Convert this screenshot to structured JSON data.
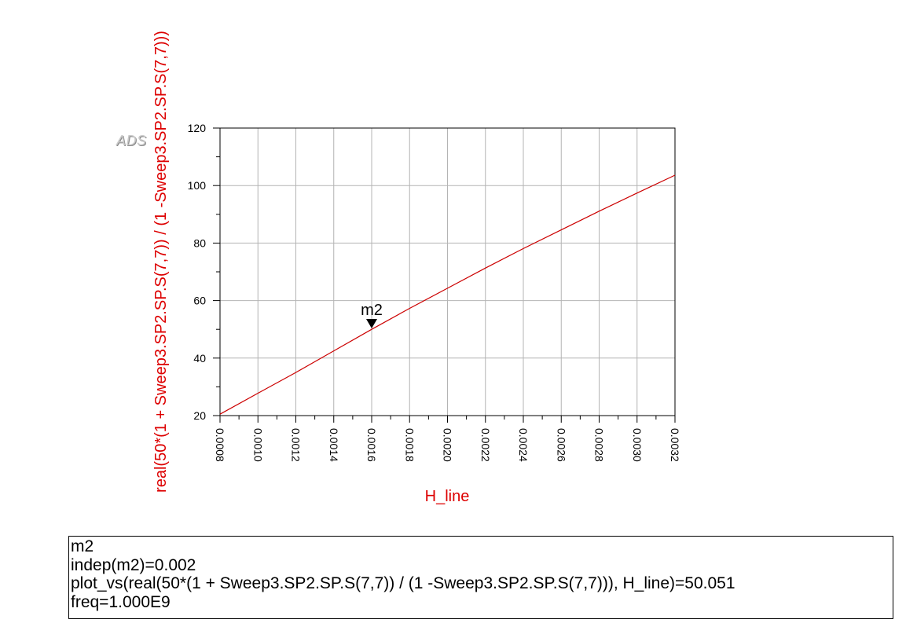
{
  "watermark": "ADS",
  "chart_data": {
    "type": "line",
    "xlabel": "H_line",
    "ylabel": "real(50*(1 + Sweep3.SP2.SP.S(7,7)) / (1 -Sweep3.SP2.SP.S(7,7)))",
    "xlim": [
      0.0008,
      0.0032
    ],
    "ylim": [
      20,
      120
    ],
    "xticks": [
      "0.0008",
      "0.0010",
      "0.0012",
      "0.0014",
      "0.0016",
      "0.0018",
      "0.0020",
      "0.0022",
      "0.0024",
      "0.0026",
      "0.0028",
      "0.0030",
      "0.0032"
    ],
    "yticks": [
      "20",
      "40",
      "60",
      "80",
      "100",
      "120"
    ],
    "grid": true,
    "line_color": "#cc0000",
    "axis_label_color": "#dd0000",
    "series": [
      {
        "x": [
          0.0008,
          0.001,
          0.0012,
          0.0014,
          0.0016,
          0.0018,
          0.002,
          0.0022,
          0.0024,
          0.0026,
          0.0028,
          0.003,
          0.0032
        ],
        "y": [
          20.5,
          27.8,
          35.0,
          42.5,
          50.0,
          57.3,
          64.3,
          71.3,
          78.1,
          84.6,
          91.1,
          97.4,
          103.6
        ]
      }
    ],
    "marker": {
      "name": "m2",
      "x": 0.0016,
      "y": 50.051
    }
  },
  "marker_readout": {
    "lines": [
      "m2",
      "indep(m2)=0.002",
      "plot_vs(real(50*(1 + Sweep3.SP2.SP.S(7,7)) / (1 -Sweep3.SP2.SP.S(7,7))), H_line)=50.051",
      "freq=1.000E9"
    ]
  }
}
